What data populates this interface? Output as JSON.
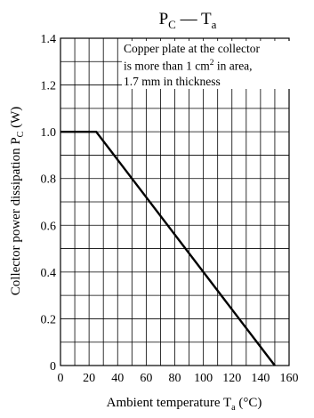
{
  "chart_data": {
    "type": "line",
    "title": {
      "main": "P",
      "main_sub": "C",
      "sep": " — ",
      "var": "T",
      "var_sub": "a"
    },
    "xlabel": {
      "text": "Ambient temperature  T",
      "sub": "a",
      "unit": "  (°C)"
    },
    "ylabel": {
      "text": "Collector power dissipation  P",
      "sub": "C",
      "unit": "  (W)"
    },
    "xlim": [
      0,
      160
    ],
    "ylim": [
      0,
      1.4
    ],
    "x_ticks": [
      0,
      20,
      40,
      60,
      80,
      100,
      120,
      140,
      160
    ],
    "x_tick_labels": [
      "0",
      "20",
      "40",
      "60",
      "80",
      "100",
      "120",
      "140",
      "160"
    ],
    "y_ticks": [
      0,
      0.2,
      0.4,
      0.6,
      0.8,
      1.0,
      1.2,
      1.4
    ],
    "y_tick_labels": [
      "0",
      "0.2",
      "0.4",
      "0.6",
      "0.8",
      "1.0",
      "1.2",
      "1.4"
    ],
    "grid": true,
    "series": [
      {
        "x": [
          0,
          25,
          150
        ],
        "y": [
          1.0,
          1.0,
          0
        ]
      }
    ],
    "annotation": {
      "line1": "Copper plate at the collector",
      "line2a": "is more than 1 cm",
      "line2sup": "2",
      "line2b": " in area,",
      "line3": "1.7 mm in thickness"
    }
  }
}
